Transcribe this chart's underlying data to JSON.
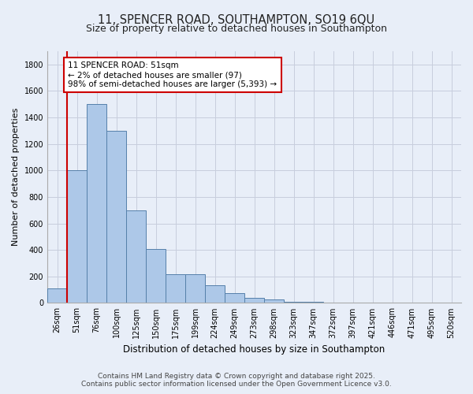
{
  "title": "11, SPENCER ROAD, SOUTHAMPTON, SO19 6QU",
  "subtitle": "Size of property relative to detached houses in Southampton",
  "xlabel": "Distribution of detached houses by size in Southampton",
  "ylabel": "Number of detached properties",
  "categories": [
    "26sqm",
    "51sqm",
    "76sqm",
    "100sqm",
    "125sqm",
    "150sqm",
    "175sqm",
    "199sqm",
    "224sqm",
    "249sqm",
    "273sqm",
    "298sqm",
    "323sqm",
    "347sqm",
    "372sqm",
    "397sqm",
    "421sqm",
    "446sqm",
    "471sqm",
    "495sqm",
    "520sqm"
  ],
  "values": [
    110,
    1000,
    1500,
    1300,
    700,
    410,
    215,
    215,
    135,
    75,
    40,
    25,
    10,
    10,
    0,
    0,
    0,
    0,
    0,
    0,
    0
  ],
  "bar_color": "#adc8e8",
  "bar_edge_color": "#5580aa",
  "background_color": "#e8eef8",
  "grid_color": "#c8cedd",
  "annotation_line1": "11 SPENCER ROAD: 51sqm",
  "annotation_line2": "← 2% of detached houses are smaller (97)",
  "annotation_line3": "98% of semi-detached houses are larger (5,393) →",
  "annotation_box_color": "#ffffff",
  "annotation_box_edge_color": "#cc0000",
  "vline_color": "#cc0000",
  "vline_x_index": 1,
  "ylim": [
    0,
    1900
  ],
  "yticks": [
    0,
    200,
    400,
    600,
    800,
    1000,
    1200,
    1400,
    1600,
    1800
  ],
  "footer1": "Contains HM Land Registry data © Crown copyright and database right 2025.",
  "footer2": "Contains public sector information licensed under the Open Government Licence v3.0.",
  "title_fontsize": 10.5,
  "subtitle_fontsize": 9,
  "xlabel_fontsize": 8.5,
  "ylabel_fontsize": 8,
  "tick_fontsize": 7,
  "annotation_fontsize": 7.5,
  "footer_fontsize": 6.5
}
